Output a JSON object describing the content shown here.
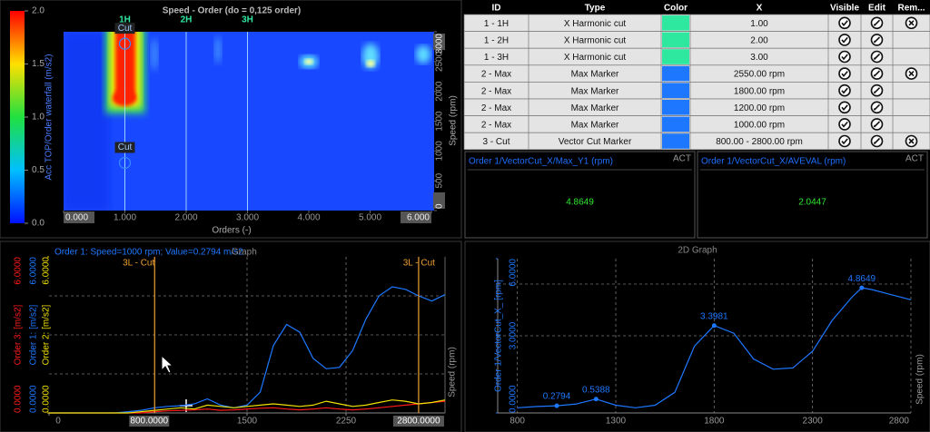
{
  "waterfall": {
    "title": "Speed - Order (do = 0,125 order)",
    "colorbar_label": "Acc TOP/Order waterfall (m/s2)",
    "colorbar_lim": [
      0,
      2
    ],
    "colorbar_ticks": [
      {
        "value": 0,
        "label": "0.0"
      },
      {
        "value": 0.5,
        "label": "0.5"
      },
      {
        "value": 1,
        "label": "1.0"
      },
      {
        "value": 1.5,
        "label": "1.5"
      },
      {
        "value": 2,
        "label": "2.0"
      }
    ],
    "x_label": "Orders (-)",
    "xlim": [
      0,
      6
    ],
    "xticks": [
      {
        "value": 0,
        "label": "0.000"
      },
      {
        "value": 1,
        "label": "1.000"
      },
      {
        "value": 2,
        "label": "2.000"
      },
      {
        "value": 3,
        "label": "3.000"
      },
      {
        "value": 4,
        "label": "4.000"
      },
      {
        "value": 5,
        "label": "5.000"
      },
      {
        "value": 6,
        "label": "6.000"
      }
    ],
    "y_label": "Speed (rpm)",
    "ylim": [
      0,
      3000
    ],
    "yticks": [
      0,
      500,
      1000,
      1500,
      2000,
      2500,
      3000
    ],
    "harmonics": [
      {
        "label": "1H",
        "order": 1
      },
      {
        "label": "2H",
        "order": 2
      },
      {
        "label": "3H",
        "order": 3
      }
    ],
    "cuts": [
      {
        "label": "Cut",
        "order": 1,
        "speed": 2800
      },
      {
        "label": "Cut",
        "order": 1,
        "speed": 800
      }
    ]
  },
  "table": {
    "columns": [
      "ID",
      "Type",
      "Color",
      "X",
      "Visible",
      "Edit",
      "Rem..."
    ],
    "rows": [
      {
        "id": "1 - 1H",
        "type": "X Harmonic cut",
        "color": "#2ee8a0",
        "x": "1.00",
        "visible": true,
        "edit": true,
        "remove": true
      },
      {
        "id": "1 - 2H",
        "type": "X Harmonic cut",
        "color": "#2ee8a0",
        "x": "2.00",
        "visible": true,
        "edit": true,
        "remove": false
      },
      {
        "id": "1 - 3H",
        "type": "X Harmonic cut",
        "color": "#2ee8a0",
        "x": "3.00",
        "visible": true,
        "edit": true,
        "remove": false
      },
      {
        "id": "2 - Max",
        "type": "Max Marker",
        "color": "#1e78ff",
        "x": "2550.00 rpm",
        "visible": true,
        "edit": true,
        "remove": true
      },
      {
        "id": "2 - Max",
        "type": "Max Marker",
        "color": "#1e78ff",
        "x": "1800.00 rpm",
        "visible": true,
        "edit": true,
        "remove": false
      },
      {
        "id": "2 - Max",
        "type": "Max Marker",
        "color": "#1e78ff",
        "x": "1200.00 rpm",
        "visible": true,
        "edit": true,
        "remove": false
      },
      {
        "id": "2 - Max",
        "type": "Max Marker",
        "color": "#1e78ff",
        "x": "1000.00 rpm",
        "visible": true,
        "edit": true,
        "remove": false
      },
      {
        "id": "3 - Cut",
        "type": "Vector Cut Marker",
        "color": "#1e78ff",
        "x": "800.00 - 2800.00 rpm",
        "visible": true,
        "edit": true,
        "remove": true
      }
    ]
  },
  "displays": [
    {
      "title": "Order 1/VectorCut_X/Max_Y1 (rpm)",
      "status": "ACT",
      "value": 4.8649
    },
    {
      "title": "Order 1/VectorCut_X/AVEVAL (rpm)",
      "status": "ACT",
      "value": 2.0447
    }
  ],
  "graph1": {
    "title": "Order 1: Speed=1000 rpm; Value=0.2794 m/s2",
    "subtitle": "Graph",
    "x_label": "Speed (rpm)",
    "x": [
      0,
      100,
      200,
      300,
      400,
      500,
      600,
      700,
      800,
      900,
      1000,
      1100,
      1200,
      1300,
      1400,
      1500,
      1600,
      1700,
      1800,
      1900,
      2000,
      2100,
      2200,
      2300,
      2400,
      2500,
      2600,
      2700,
      2800,
      2900,
      3000
    ],
    "series": [
      {
        "name": "Order 3: [m/s2]",
        "color": "#ff1a1a",
        "values": [
          0,
          0,
          0,
          0,
          0,
          0,
          0,
          0,
          0.05,
          0.08,
          0.1,
          0.12,
          0.15,
          0.1,
          0.12,
          0.15,
          0.18,
          0.2,
          0.15,
          0.12,
          0.15,
          0.2,
          0.15,
          0.12,
          0.15,
          0.2,
          0.25,
          0.3,
          0.35,
          0.4,
          0.45
        ]
      },
      {
        "name": "Order 1: [m/s2]",
        "color": "#1e78ff",
        "values": [
          0,
          0,
          0,
          0,
          0,
          0,
          0.05,
          0.1,
          0.2,
          0.25,
          0.28,
          0.35,
          0.54,
          0.3,
          0.2,
          0.3,
          0.8,
          2.6,
          3.4,
          3.1,
          2.1,
          1.7,
          1.75,
          2.4,
          3.6,
          4.5,
          4.85,
          4.75,
          4.5,
          4.3,
          4.55
        ]
      },
      {
        "name": "Order 2: [m/s2]",
        "color": "#f0e000",
        "values": [
          0,
          0,
          0,
          0,
          0,
          0,
          0,
          0.05,
          0.1,
          0.15,
          0.2,
          0.15,
          0.3,
          0.25,
          0.2,
          0.25,
          0.3,
          0.35,
          0.3,
          0.25,
          0.3,
          0.45,
          0.35,
          0.25,
          0.3,
          0.4,
          0.5,
          0.45,
          0.35,
          0.4,
          0.5
        ]
      }
    ],
    "xlim": [
      0,
      3000
    ],
    "xticks": [
      0,
      1500,
      2250
    ],
    "ylim": [
      0,
      6
    ],
    "yticks": [
      {
        "value": 0,
        "label": "0.0000"
      },
      {
        "value": 6,
        "label": "6.0000"
      }
    ],
    "cursors": [
      {
        "name": "3L - Cut",
        "value": 800,
        "label": "800.0000"
      },
      {
        "name": "3L - Cut",
        "value": 2800,
        "label": "2800.0000"
      }
    ],
    "cursor_color": "#f0a030"
  },
  "graph2": {
    "title": "2D Graph",
    "y_label": "Order 1/VectorCut_X_ [rpm]",
    "x_label": "Speed (rpm)",
    "color": "#1e78ff",
    "x": [
      800,
      900,
      1000,
      1100,
      1200,
      1300,
      1400,
      1500,
      1600,
      1700,
      1800,
      1900,
      2000,
      2100,
      2200,
      2300,
      2400,
      2500,
      2550,
      2600,
      2700,
      2800
    ],
    "values": [
      0.2,
      0.25,
      0.2794,
      0.35,
      0.5388,
      0.3,
      0.2,
      0.3,
      0.8,
      2.6,
      3.3981,
      3.1,
      2.1,
      1.7,
      1.75,
      2.4,
      3.6,
      4.5,
      4.8649,
      4.8,
      4.6,
      4.4
    ],
    "markers": [
      {
        "x": 1000,
        "value": 0.2794
      },
      {
        "x": 1200,
        "value": 0.5388
      },
      {
        "x": 1800,
        "value": 3.3981
      },
      {
        "x": 2550,
        "value": 4.8649
      }
    ],
    "xlim": [
      700,
      2800
    ],
    "xticks": [
      800,
      1300,
      1800,
      2300,
      2800
    ],
    "ylim": [
      0,
      6
    ],
    "yticks": [
      {
        "value": 0,
        "label": "0.0000"
      },
      {
        "value": 3,
        "label": "3.0000"
      },
      {
        "value": 6,
        "label": "6.0000"
      }
    ]
  }
}
